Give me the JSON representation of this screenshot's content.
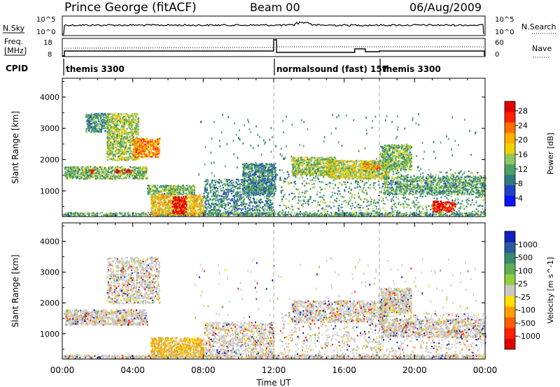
{
  "header": {
    "station": "Prince George (fitACF)",
    "beam": "Beam 00",
    "date": "06/Aug/2009"
  },
  "top_strip": {
    "left_label": "N.Sky",
    "right_label": "N.Search",
    "left_ticks": [
      "10^5",
      "10^0"
    ],
    "right_ticks": [
      "10^5",
      "10^0"
    ]
  },
  "freq_strip": {
    "left_label_1": "Freq.",
    "left_label_2": "[MHz]",
    "left_ticks": [
      "18",
      "8"
    ],
    "right_label": "Nave",
    "right_ticks": [
      "60",
      "0"
    ]
  },
  "cpid": {
    "label": "CPID",
    "segments": [
      {
        "name": "themis 3300",
        "start_hour": 0
      },
      {
        "name": "normalsound (fast) 157",
        "start_hour": 12
      },
      {
        "name": "themis 3300",
        "start_hour": 18
      }
    ]
  },
  "chart_data": [
    {
      "type": "heatmap",
      "name": "power-panel",
      "ylabel": "Slant Range [km]",
      "ylim": [
        180,
        4600
      ],
      "yticks": [
        "4000",
        "3000",
        "2000",
        "1000"
      ],
      "yticks_values": [
        4000,
        3000,
        2000,
        1000
      ],
      "xlim_hours": [
        0,
        24
      ],
      "colorbar": {
        "label": "Power [dB]",
        "ticks": [
          "28",
          "24",
          "20",
          "16",
          "12",
          "8",
          "4"
        ],
        "range": [
          0,
          30
        ],
        "colors": [
          "#0a12ff",
          "#2040c8",
          "#2e7e7e",
          "#4aa060",
          "#8ec860",
          "#f0d000",
          "#ffb000",
          "#ff7000",
          "#ff2000",
          "#e00000"
        ]
      },
      "features": [
        {
          "t0": 0.0,
          "t1": 24.0,
          "r0": 220,
          "r1": 330,
          "level": 0.35
        },
        {
          "t0": 0.1,
          "t1": 4.8,
          "r0": 1400,
          "r1": 1800,
          "level": 0.4
        },
        {
          "t0": 1.3,
          "t1": 2.6,
          "r0": 2900,
          "r1": 3500,
          "level": 0.3
        },
        {
          "t0": 2.5,
          "t1": 4.3,
          "r0": 2000,
          "r1": 3500,
          "level": 0.45
        },
        {
          "t0": 4.0,
          "t1": 5.5,
          "r0": 2100,
          "r1": 2700,
          "level": 0.72
        },
        {
          "t0": 1.5,
          "t1": 1.8,
          "r0": 1600,
          "r1": 1700,
          "level": 0.95
        },
        {
          "t0": 3.0,
          "t1": 3.9,
          "r0": 1600,
          "r1": 1700,
          "level": 0.95
        },
        {
          "t0": 4.8,
          "t1": 7.5,
          "r0": 900,
          "r1": 1200,
          "level": 0.4
        },
        {
          "t0": 5.0,
          "t1": 8.0,
          "r0": 250,
          "r1": 900,
          "level": 0.6
        },
        {
          "t0": 6.2,
          "t1": 7.0,
          "r0": 280,
          "r1": 850,
          "level": 0.97
        },
        {
          "t0": 8.0,
          "t1": 12.0,
          "r0": 250,
          "r1": 1400,
          "level": 0.3
        },
        {
          "t0": 10.2,
          "t1": 12.1,
          "r0": 900,
          "r1": 1900,
          "level": 0.3
        },
        {
          "t0": 12.3,
          "t1": 24.0,
          "r0": 250,
          "r1": 1700,
          "level": 0.35
        },
        {
          "t0": 13.0,
          "t1": 15.5,
          "r0": 1500,
          "r1": 2100,
          "level": 0.45
        },
        {
          "t0": 15.0,
          "t1": 18.5,
          "r0": 1400,
          "r1": 2000,
          "level": 0.5
        },
        {
          "t0": 17.0,
          "t1": 18.0,
          "r0": 1700,
          "r1": 1900,
          "level": 0.72
        },
        {
          "t0": 18.2,
          "t1": 24.0,
          "r0": 900,
          "r1": 1500,
          "level": 0.35
        },
        {
          "t0": 18.0,
          "t1": 19.8,
          "r0": 1700,
          "r1": 2500,
          "level": 0.4
        },
        {
          "t0": 21.0,
          "t1": 22.3,
          "r0": 350,
          "r1": 700,
          "level": 0.93
        }
      ]
    },
    {
      "type": "heatmap",
      "name": "velocity-panel",
      "ylabel": "Slant Range [km]",
      "ylim": [
        180,
        4600
      ],
      "yticks": [
        "4000",
        "3000",
        "2000",
        "1000"
      ],
      "yticks_values": [
        4000,
        3000,
        2000,
        1000
      ],
      "xlim_hours": [
        0,
        24
      ],
      "colorbar": {
        "label": "Velocity [m s^-1]",
        "ticks": [
          "1000",
          "500",
          "100",
          "25",
          "-25",
          "-100",
          "-500",
          "-1000"
        ],
        "colors": [
          "#1020c0",
          "#2a5aa0",
          "#3a8a70",
          "#60b050",
          "#90d040",
          "#c8c8c8",
          "#ffe000",
          "#ffa000",
          "#ff6000",
          "#ff2000",
          "#e00000"
        ]
      },
      "features": [
        {
          "t0": 0.0,
          "t1": 24.0,
          "r0": 220,
          "r1": 330,
          "level": 0.5
        },
        {
          "t0": 0.1,
          "t1": 4.8,
          "r0": 1300,
          "r1": 1800,
          "level": 0.5
        },
        {
          "t0": 2.5,
          "t1": 5.5,
          "r0": 2000,
          "r1": 3500,
          "level": 0.5
        },
        {
          "t0": 5.0,
          "t1": 8.0,
          "r0": 250,
          "r1": 900,
          "level": 0.7
        },
        {
          "t0": 8.0,
          "t1": 12.0,
          "r0": 250,
          "r1": 1400,
          "level": 0.5
        },
        {
          "t0": 12.3,
          "t1": 24.0,
          "r0": 250,
          "r1": 1700,
          "level": 0.5
        },
        {
          "t0": 13.0,
          "t1": 18.5,
          "r0": 1400,
          "r1": 2100,
          "level": 0.5
        },
        {
          "t0": 18.0,
          "t1": 24.0,
          "r0": 900,
          "r1": 1500,
          "level": 0.5
        },
        {
          "t0": 18.0,
          "t1": 19.8,
          "r0": 1700,
          "r1": 2500,
          "level": 0.5
        }
      ]
    }
  ],
  "time_axis": {
    "ticks": [
      "00:00",
      "04:00",
      "08:00",
      "12:00",
      "16:00",
      "20:00",
      "00:00"
    ],
    "label": "Time UT"
  }
}
